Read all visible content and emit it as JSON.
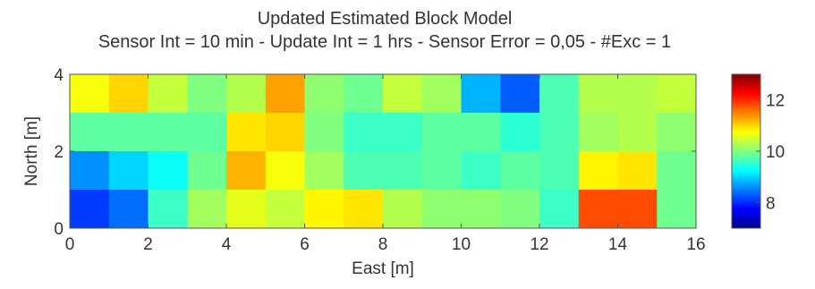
{
  "chart_data": {
    "type": "heatmap",
    "title": "Updated Estimated Block Model",
    "subtitle": "Sensor Int = 10 min - Update Int = 1 hrs - Sensor Error = 0,05 - #Exc = 1",
    "xlabel": "East [m]",
    "ylabel": "North [m]",
    "x_range": [
      0,
      16
    ],
    "y_range": [
      0,
      4
    ],
    "x_ticks": [
      "0",
      "2",
      "4",
      "6",
      "8",
      "10",
      "12",
      "14",
      "16"
    ],
    "y_ticks": [
      "0",
      "2",
      "4"
    ],
    "cell_size_m": 1,
    "rows_from_north": [
      [
        10.7,
        11.0,
        10.4,
        10.0,
        10.3,
        11.3,
        10.1,
        9.9,
        10.4,
        10.2,
        8.8,
        8.3,
        9.7,
        10.3,
        10.3,
        10.4
      ],
      [
        9.8,
        9.8,
        9.8,
        9.8,
        10.9,
        11.0,
        10.0,
        9.6,
        9.6,
        9.8,
        9.8,
        9.5,
        9.7,
        10.2,
        10.3,
        10.1
      ],
      [
        8.6,
        9.0,
        9.3,
        9.9,
        11.2,
        10.7,
        10.2,
        9.7,
        9.7,
        9.8,
        9.6,
        9.8,
        9.7,
        10.8,
        10.9,
        9.9
      ],
      [
        8.1,
        8.4,
        9.6,
        10.2,
        10.6,
        10.4,
        10.8,
        10.9,
        10.3,
        10.1,
        10.1,
        10.0,
        9.6,
        11.8,
        11.8,
        9.9
      ]
    ],
    "colorbar": {
      "range": [
        7,
        13
      ],
      "ticks": [
        "8",
        "10",
        "12"
      ],
      "colormap": "jet"
    }
  }
}
